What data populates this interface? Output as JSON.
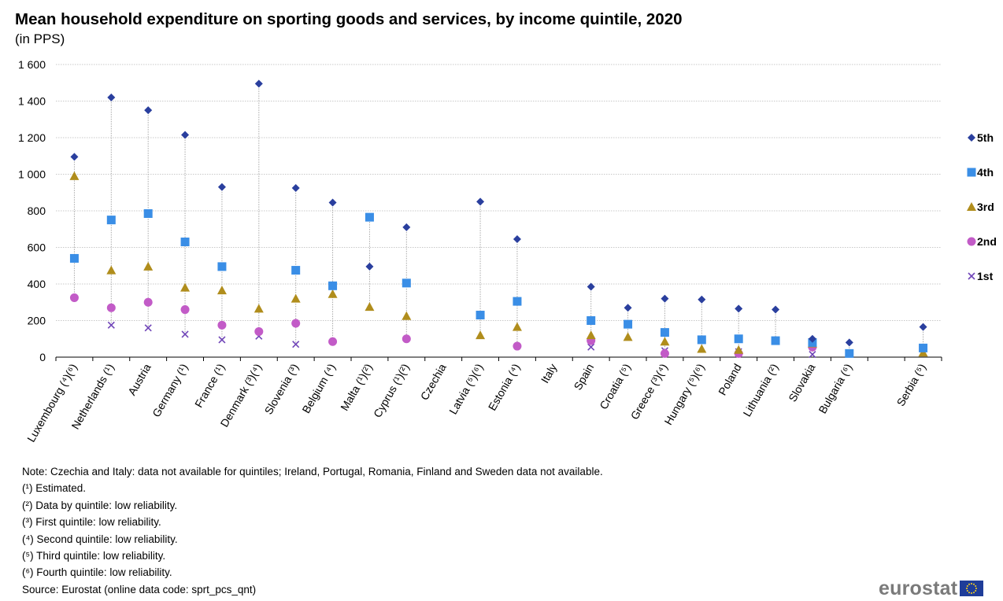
{
  "title": "Mean household expenditure on sporting goods and services, by income quintile, 2020",
  "subtitle": "(in PPS)",
  "notes": [
    "Note: Czechia and Italy: data not available for quintiles; Ireland, Portugal, Romania, Finland and Sweden data not available.",
    "(¹) Estimated.",
    "(²) Data by quintile: low reliability.",
    "(³) First quintile: low reliability.",
    "(⁴) Second quintile: low reliability.",
    "(⁵) Third quintile: low reliability.",
    "(⁶) Fourth quintile: low reliability.",
    "Source: Eurostat (online data code: sprt_pcs_qnt)"
  ],
  "logo": {
    "text": "eurostat"
  },
  "colors": {
    "5th": "#2a3f9e",
    "4th": "#3a8ee6",
    "3rd": "#b08d1c",
    "2nd": "#c25bc7",
    "1st": "#7045b8",
    "grid": "#c8c8c8"
  },
  "chart_data": {
    "type": "scatter",
    "ylim": [
      0,
      1600
    ],
    "yticks": [
      0,
      200,
      400,
      600,
      800,
      1000,
      1200,
      1400,
      1600
    ],
    "ytick_labels": [
      "0",
      "200",
      "400",
      "600",
      "800",
      "1 000",
      "1 200",
      "1 400",
      "1 600"
    ],
    "categories": [
      "Luxembourg (⁴)(⁶)",
      "Netherlands (¹)",
      "Austria",
      "Germany (¹)",
      "France (¹)",
      "Denmark (³)(⁴)",
      "Slovenia (³)",
      "Belgium (⁴)",
      "Malta (¹)(²)",
      "Cyprus (¹)(²)",
      "Czechia",
      "Latvia (⁵)(⁶)",
      "Estonia (⁴)",
      "Italy",
      "Spain",
      "Croatia (⁵)",
      "Greece (³)(⁴)",
      "Hungary (⁵)(⁶)",
      "Poland",
      "Lithuania (²)",
      "Slovakia",
      "Bulgaria (⁶)",
      "",
      "Serbia (⁵)"
    ],
    "legend_position": "right",
    "series": [
      {
        "name": "5th",
        "marker": "diamond",
        "values": [
          1095,
          1420,
          1350,
          1215,
          930,
          1495,
          925,
          845,
          495,
          710,
          null,
          850,
          645,
          null,
          385,
          270,
          320,
          315,
          265,
          260,
          100,
          80,
          null,
          165
        ]
      },
      {
        "name": "4th",
        "marker": "square",
        "values": [
          540,
          750,
          785,
          630,
          495,
          null,
          475,
          390,
          765,
          405,
          null,
          230,
          305,
          null,
          200,
          180,
          135,
          95,
          100,
          90,
          80,
          20,
          null,
          50
        ]
      },
      {
        "name": "3rd",
        "marker": "triangle",
        "values": [
          990,
          475,
          495,
          380,
          365,
          265,
          320,
          345,
          275,
          225,
          null,
          120,
          165,
          null,
          120,
          110,
          85,
          45,
          40,
          null,
          75,
          null,
          null,
          25
        ]
      },
      {
        "name": "2nd",
        "marker": "circle",
        "values": [
          325,
          270,
          300,
          260,
          175,
          140,
          185,
          85,
          null,
          100,
          null,
          null,
          60,
          null,
          90,
          null,
          20,
          null,
          20,
          null,
          55,
          null,
          null,
          null
        ]
      },
      {
        "name": "1st",
        "marker": "cross",
        "values": [
          null,
          175,
          160,
          125,
          95,
          115,
          70,
          null,
          null,
          null,
          null,
          null,
          null,
          null,
          55,
          null,
          35,
          null,
          30,
          null,
          15,
          null,
          null,
          null
        ]
      }
    ]
  }
}
